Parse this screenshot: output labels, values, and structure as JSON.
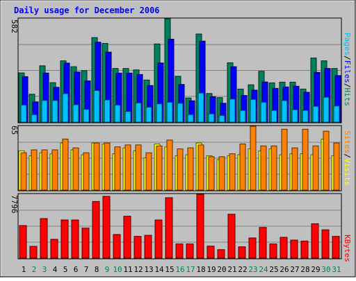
{
  "chart_data": {
    "type": "bar",
    "title": "Daily usage for December 2006",
    "categories": [
      "1",
      "2",
      "3",
      "4",
      "5",
      "6",
      "7",
      "8",
      "9",
      "10",
      "11",
      "12",
      "13",
      "14",
      "15",
      "16",
      "17",
      "18",
      "19",
      "20",
      "21",
      "22",
      "23",
      "24",
      "25",
      "26",
      "27",
      "28",
      "29",
      "30",
      "31"
    ],
    "weekend_days": [
      "2",
      "3",
      "9",
      "10",
      "16",
      "17",
      "23",
      "24",
      "30",
      "31"
    ],
    "panels": [
      {
        "name": "hits-files-pages",
        "max_label": "582",
        "ylim": [
          0,
          582
        ],
        "series": [
          {
            "name": "Hits",
            "color": "#00805c",
            "values": [
              277,
              157,
              317,
              222,
              345,
              312,
              290,
              476,
              443,
              302,
              302,
              294,
              237,
              440,
              582,
              258,
              136,
              496,
              161,
              138,
              334,
              186,
              210,
              286,
              221,
              225,
              225,
              186,
              361,
              345,
              302
            ]
          },
          {
            "name": "Files",
            "color": "#0000ff",
            "values": [
              256,
              114,
              276,
              196,
              332,
              282,
              232,
              450,
              394,
              276,
              276,
              268,
              206,
              333,
              467,
              212,
              120,
              456,
              143,
              106,
              312,
              150,
              180,
              226,
              190,
              198,
              202,
              168,
              280,
              302,
              262
            ]
          },
          {
            "name": "Pages",
            "color": "#00c0ff",
            "values": [
              96,
              42,
              122,
              122,
              160,
              98,
              72,
              178,
              125,
              96,
              60,
              108,
              84,
              103,
              112,
              106,
              42,
              164,
              47,
              37,
              130,
              66,
              128,
              112,
              66,
              121,
              70,
              66,
              89,
              140,
              91
            ]
          }
        ]
      },
      {
        "name": "sites-visits",
        "max_label": "65",
        "ylim": [
          0,
          65
        ],
        "series": [
          {
            "name": "Visits",
            "color": "#ffff00",
            "values": [
              40,
              35,
              38,
              37,
              48,
              41,
              36,
              48,
              47,
              37,
              43,
              40,
              33,
              47,
              44,
              35,
              36,
              48,
              35,
              31,
              35,
              36,
              42,
              40,
              42,
              36,
              37,
              37,
              36,
              52,
              35
            ]
          },
          {
            "name": "Sites",
            "color": "#ff8000",
            "values": [
              38,
              41,
              41,
              41,
              52,
              43,
              38,
              48,
              48,
              44,
              46,
              46,
              38,
              45,
              51,
              42,
              43,
              46,
              34,
              34,
              37,
              47,
              65,
              45,
              45,
              62,
              43,
              62,
              45,
              60,
              48
            ]
          }
        ]
      },
      {
        "name": "kbytes",
        "max_label": "7796",
        "ylim": [
          0,
          7796
        ],
        "series": [
          {
            "name": "KBytes",
            "color": "#ff0000",
            "values": [
              3976,
              1439,
              4829,
              2296,
              4661,
              4661,
              3665,
              6917,
              7547,
              2885,
              5119,
              2657,
              2789,
              4661,
              7380,
              1727,
              1727,
              7796,
              1466,
              1037,
              5360,
              1383,
              2462,
              3750,
              1727,
              2543,
              2200,
              2084,
              4198,
              3457,
              2657
            ]
          }
        ]
      }
    ],
    "colors": {
      "background": "#c0c0c0",
      "plot_background": "#c0c0c0",
      "title": "#0000ff",
      "kbytes_label": "#ff0000",
      "weekday_label": "#000000",
      "weekend_label": "#00805c"
    }
  }
}
